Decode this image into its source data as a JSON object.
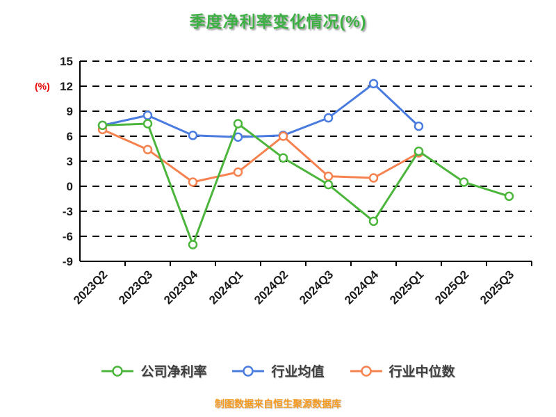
{
  "chart_data": {
    "type": "line",
    "title": "季度净利率变化情况(%)",
    "y_unit": "(%)",
    "xlabel": "",
    "ylabel": "(%)",
    "categories": [
      "2023Q2",
      "2023Q3",
      "2023Q4",
      "2024Q1",
      "2024Q2",
      "2024Q3",
      "2024Q4",
      "2025Q1",
      "2025Q2",
      "2025Q3"
    ],
    "series": [
      {
        "name": "公司净利率",
        "color": "#4cb63c",
        "values": [
          7.3,
          7.5,
          -7.0,
          7.5,
          3.4,
          0.2,
          -4.2,
          4.2,
          0.5,
          -1.2
        ]
      },
      {
        "name": "行业均值",
        "color": "#4a7ce0",
        "values": [
          7.3,
          8.5,
          6.1,
          5.9,
          6.1,
          8.2,
          12.3,
          7.2,
          null,
          null
        ]
      },
      {
        "name": "行业中位数",
        "color": "#f5824f",
        "values": [
          6.8,
          4.4,
          0.5,
          1.7,
          6.0,
          1.2,
          1.0,
          4.0,
          null,
          null
        ]
      }
    ],
    "ylim": [
      -9,
      15
    ],
    "yticks": [
      15,
      12,
      9,
      6,
      3,
      0,
      -3,
      -6,
      -9
    ],
    "grid": "dashed horizontal gridlines",
    "legend_position": "bottom",
    "source_note": "制图数据来自恒生聚源数据库"
  }
}
